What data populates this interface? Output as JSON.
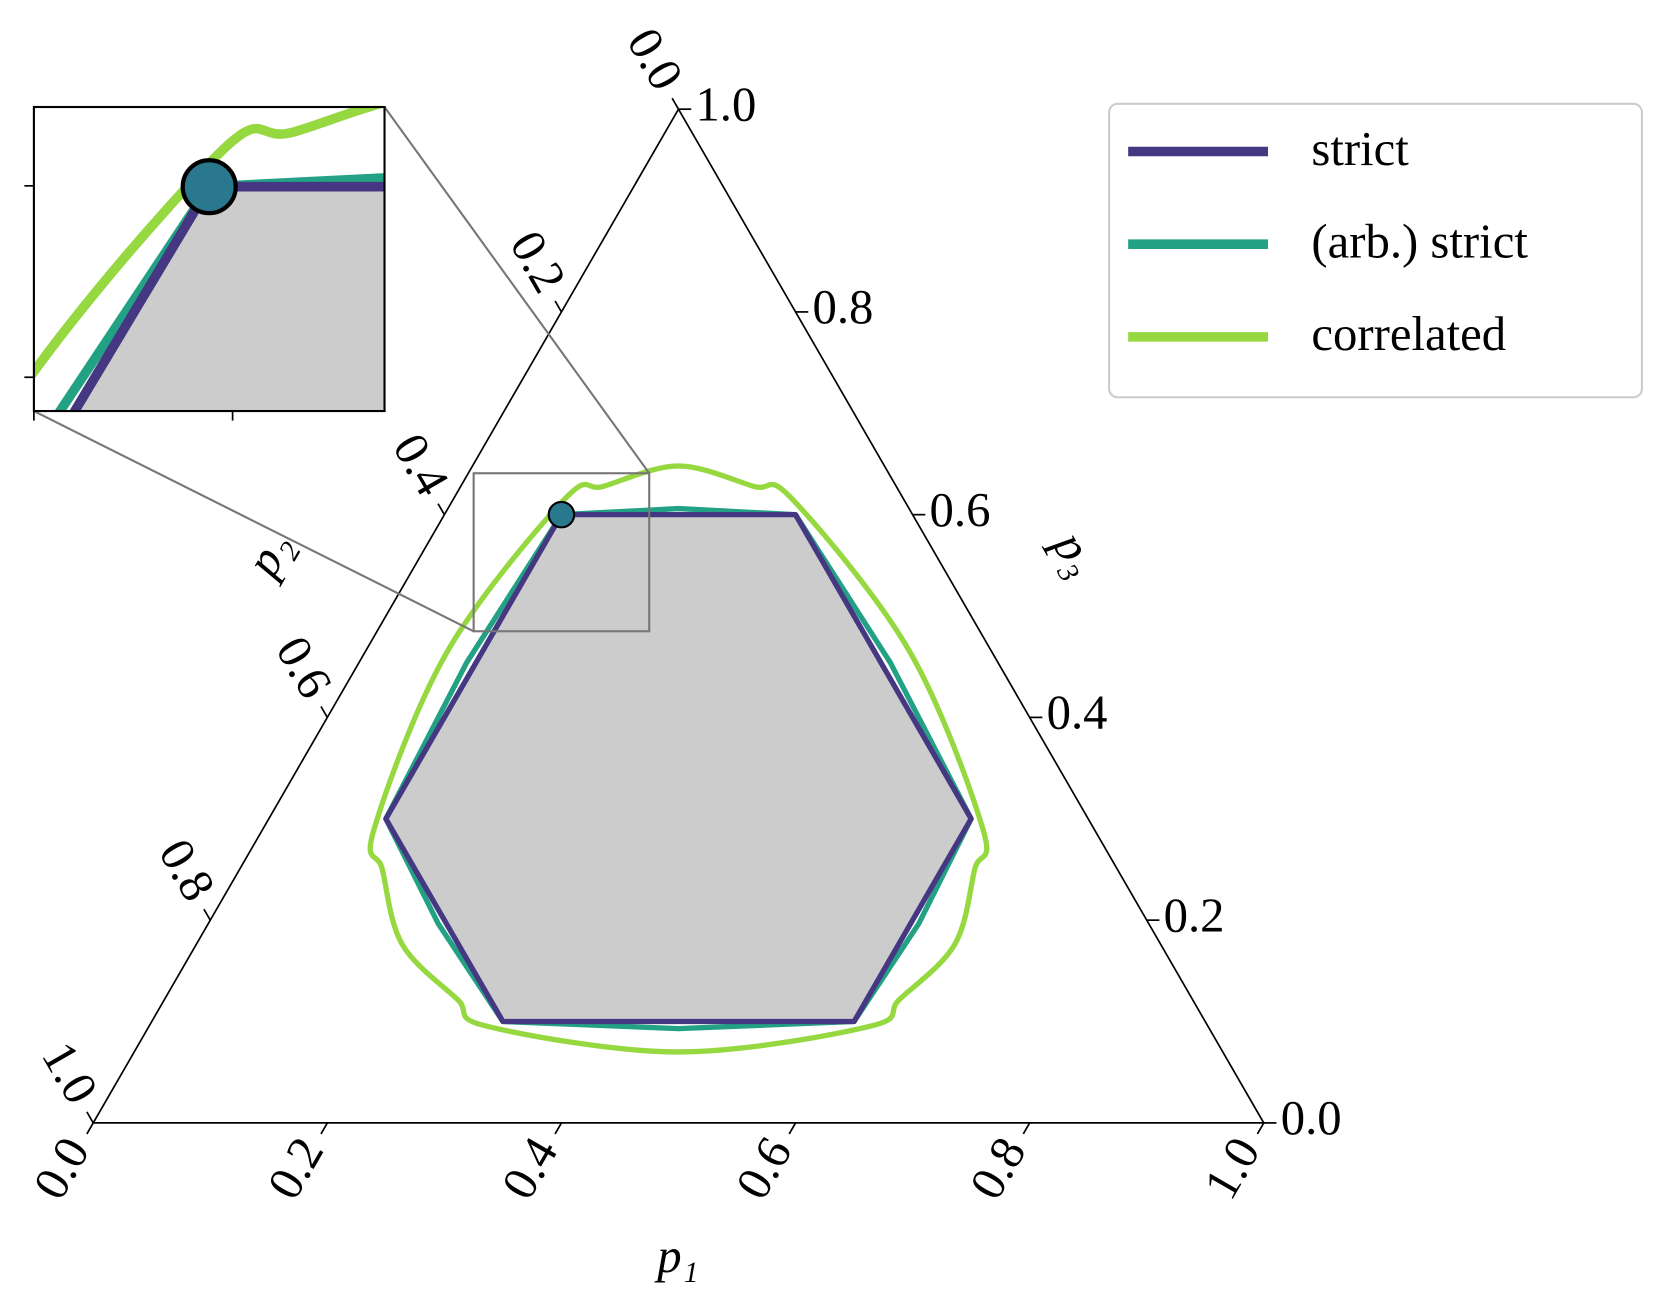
{
  "chart_data": {
    "type": "ternary",
    "axis_labels": {
      "p1": "p₁",
      "p2": "p₂",
      "p3": "p₃"
    },
    "p1ticks": [
      {
        "value": 0,
        "label": "0.0"
      },
      0.2,
      0.4,
      0.6,
      0.8,
      {
        "value": 1,
        "label": "1.0"
      }
    ],
    "p2ticks": [
      {
        "value": 0,
        "label": "0.0"
      },
      0.2,
      0.4,
      0.6,
      0.8,
      {
        "value": 1,
        "label": "1.0"
      }
    ],
    "p3ticks": [
      {
        "value": 0,
        "label": "0.0"
      },
      0.2,
      0.4,
      0.6,
      0.8,
      {
        "value": 1,
        "label": "1.0"
      }
    ],
    "series": [
      {
        "name": "strict",
        "color": "#453781",
        "fill_color": "#cccccc",
        "smooth": false,
        "p1": [
          0.1,
          0.3,
          0.6,
          0.6,
          0.3,
          0.1
        ],
        "p2": [
          0.3,
          0.1,
          0.1,
          0.3,
          0.6,
          0.6
        ],
        "p3": [
          0.6,
          0.6,
          0.3,
          0.1,
          0.1,
          0.3
        ]
      },
      {
        "name": "(arb.) strict",
        "color": "#22a184",
        "smooth": false,
        "p1": [
          0.1,
          0.197,
          0.3,
          0.454,
          0.6,
          0.607,
          0.6,
          0.4535,
          0.3,
          0.1965,
          0.1,
          0.092
        ],
        "p2": [
          0.3,
          0.197,
          0.1,
          0.092,
          0.1,
          0.1965,
          0.3,
          0.4535,
          0.6,
          0.607,
          0.6,
          0.454
        ],
        "p3": [
          0.6,
          0.606,
          0.6,
          0.454,
          0.3,
          0.1965,
          0.1,
          0.093,
          0.1,
          0.1965,
          0.3,
          0.454
        ]
      },
      {
        "name": "correlated",
        "color": "#95d840",
        "smooth": true,
        "p1": [
          0.176,
          0.25,
          0.29,
          0.465,
          0.615,
          0.628,
          0.648,
          0.628,
          0.615,
          0.465,
          0.29,
          0.25,
          0.176,
          0.122,
          0.095,
          0.07,
          0.095,
          0.122
        ],
        "p2": [
          0.176,
          0.122,
          0.095,
          0.07,
          0.095,
          0.122,
          0.176,
          0.25,
          0.29,
          0.465,
          0.615,
          0.628,
          0.648,
          0.628,
          0.615,
          0.465,
          0.29,
          0.25
        ],
        "p3": [
          0.648,
          0.628,
          0.615,
          0.465,
          0.29,
          0.25,
          0.176,
          0.122,
          0.095,
          0.07,
          0.095,
          0.122,
          0.176,
          0.25,
          0.29,
          0.465,
          0.615,
          0.628
        ]
      }
    ],
    "marker": {
      "p1": 0.1,
      "p2": 0.3,
      "p3": 0.6,
      "color": "#2a788e"
    },
    "inset": {
      "xlim": [
        0.325,
        0.475
      ],
      "ylim": [
        0.42,
        0.555
      ],
      "xticks": [
        0.325,
        0.41
      ],
      "yticks": [
        0.435,
        0.52
      ]
    },
    "legend": "upper right"
  }
}
